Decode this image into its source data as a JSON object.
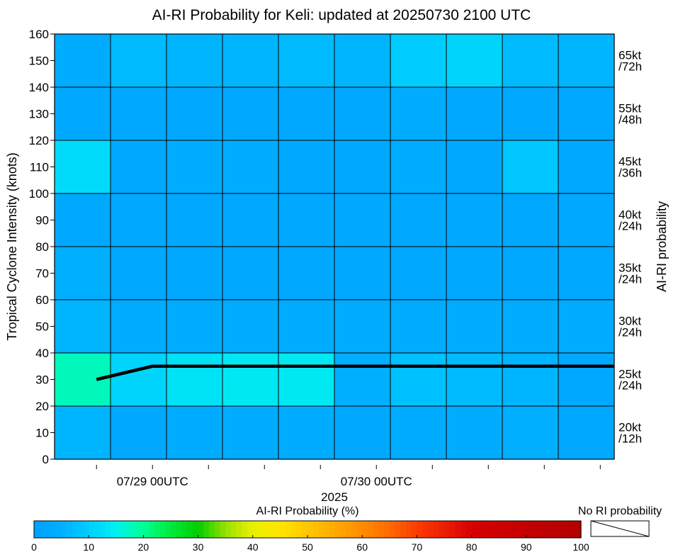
{
  "chart_data": {
    "type": "heatmap",
    "title": "AI-RI Probability for Keli: updated at 20250730 2100 UTC",
    "ylabel": "Tropical Cyclone Intensity (knots)",
    "ylabel_right": "AI-RI probability",
    "xlabel": "2025",
    "ylim": [
      0,
      160
    ],
    "yticks": [
      0,
      10,
      20,
      30,
      40,
      50,
      60,
      70,
      80,
      90,
      100,
      110,
      120,
      130,
      140,
      150,
      160
    ],
    "x_tick_labels": [
      {
        "label": "07/29 00UTC",
        "t": 1
      },
      {
        "label": "07/30 00UTC",
        "t": 5
      }
    ],
    "x_range_days": [
      -0.4375,
      2.0625
    ],
    "x_minor_tick_days": [
      -0.25,
      0,
      0.25,
      0.5,
      0.75,
      1,
      1.25,
      1.5,
      1.75,
      2
    ],
    "columns": 10,
    "rows": [
      {
        "band": [
          0,
          20
        ],
        "label": "20kt\n/12h",
        "probs": [
          6,
          3,
          4,
          4,
          4,
          3,
          4,
          4,
          5,
          3
        ]
      },
      {
        "band": [
          20,
          40
        ],
        "label": "25kt\n/24h",
        "probs": [
          18,
          11,
          13,
          14,
          14,
          5,
          8,
          7,
          6,
          3
        ]
      },
      {
        "band": [
          40,
          60
        ],
        "label": "30kt\n/24h",
        "probs": [
          6,
          4,
          4,
          4,
          4,
          4,
          4,
          4,
          4,
          4
        ]
      },
      {
        "band": [
          60,
          80
        ],
        "label": "35kt\n/24h",
        "probs": [
          5,
          3,
          3,
          3,
          3,
          3,
          3,
          3,
          3,
          3
        ]
      },
      {
        "band": [
          80,
          100
        ],
        "label": "40kt\n/24h",
        "probs": [
          3,
          3,
          3,
          3,
          3,
          3,
          3,
          3,
          3,
          3
        ]
      },
      {
        "band": [
          100,
          120
        ],
        "label": "45kt\n/36h",
        "probs": [
          12,
          3,
          4,
          4,
          3,
          3,
          4,
          3,
          9,
          3
        ]
      },
      {
        "band": [
          120,
          140
        ],
        "label": "55kt\n/48h",
        "probs": [
          3,
          3,
          3,
          3,
          3,
          3,
          4,
          3,
          3,
          3
        ]
      },
      {
        "band": [
          140,
          160
        ],
        "label": "65kt\n/72h",
        "probs": [
          4,
          7,
          6,
          6,
          7,
          6,
          10,
          11,
          7,
          6
        ]
      }
    ],
    "intensity_track": {
      "x_days": [
        -0.25,
        0,
        0.25,
        0.5,
        0.75,
        1,
        1.25,
        1.5,
        1.75,
        2,
        2.0625
      ],
      "y_knots": [
        30,
        35,
        35,
        35,
        35,
        35,
        35,
        35,
        35,
        35,
        35
      ]
    },
    "colorbar": {
      "title": "AI-RI Probability (%)",
      "range": [
        0,
        100
      ],
      "ticks": [
        0,
        10,
        20,
        30,
        40,
        50,
        60,
        70,
        80,
        90,
        100
      ],
      "no_ri_label": "No RI probability"
    }
  }
}
